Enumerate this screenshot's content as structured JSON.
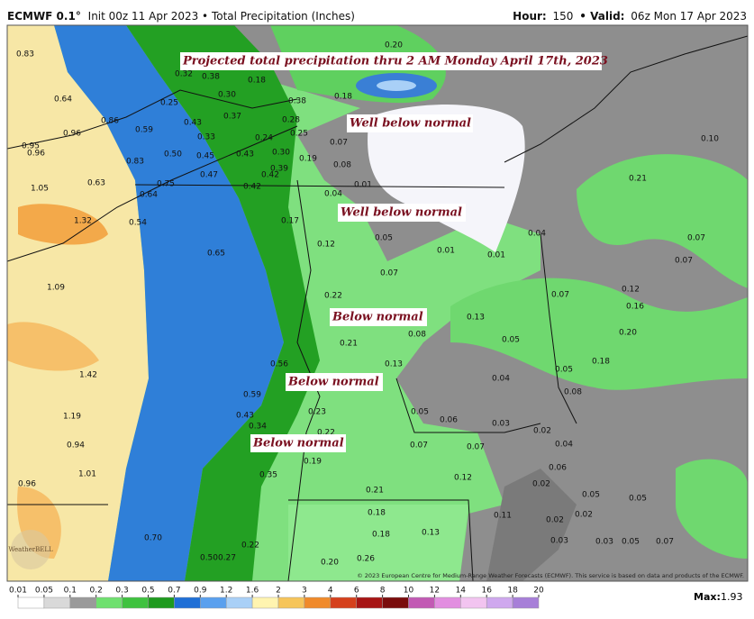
{
  "header": {
    "model": "ECMWF 0.1°",
    "init": "Init 00z 11 Apr 2023 • Total Precipitation (Inches)",
    "hour_label": "Hour:",
    "hour": "150",
    "valid_label": "• Valid:",
    "valid": "06z Mon 17 Apr 2023"
  },
  "annotations": [
    "Projected total precipitation thru 2 AM Monday April 17th, 2023",
    "Well below normal",
    "Well below normal",
    "Below normal",
    "Below normal",
    "Below normal"
  ],
  "map_labels": [
    "0.83",
    "0.64",
    "0.86",
    "0.96",
    "0.95",
    "0.96",
    "0.59",
    "0.83",
    "0.50",
    "0.63",
    "1.05",
    "0.64",
    "0.75",
    "0.54",
    "1.32",
    "1.09",
    "0.65",
    "1.42",
    "1.19",
    "0.94",
    "1.01",
    "0.96",
    "0.70",
    "0.50",
    "0.27",
    "0.22",
    "0.32",
    "0.38",
    "0.18",
    "0.30",
    "0.25",
    "0.37",
    "0.43",
    "0.33",
    "0.45",
    "0.43",
    "0.47",
    "0.42",
    "0.42",
    "0.30",
    "0.39",
    "0.24",
    "0.28",
    "0.38",
    "0.25",
    "0.19",
    "0.18",
    "0.20",
    "0.07",
    "0.08",
    "0.01",
    "0.04",
    "0.17",
    "0.12",
    "0.05",
    "0.01",
    "0.01",
    "0.04",
    "0.07",
    "0.22",
    "0.21",
    "0.08",
    "0.13",
    "0.56",
    "0.59",
    "0.43",
    "0.34",
    "0.23",
    "0.22",
    "0.19",
    "0.05",
    "0.06",
    "0.07",
    "0.07",
    "0.12",
    "0.04",
    "0.03",
    "0.02",
    "0.04",
    "0.06",
    "0.02",
    "0.35",
    "0.21",
    "0.18",
    "0.18",
    "0.13",
    "0.26",
    "0.20",
    "0.11",
    "0.02",
    "0.02",
    "0.05",
    "0.05",
    "0.03",
    "0.03",
    "0.05",
    "0.07",
    "0.13",
    "0.05",
    "0.07",
    "0.05",
    "0.08",
    "0.18",
    "0.20",
    "0.16",
    "0.12",
    "0.21",
    "0.07",
    "0.07",
    "0.10"
  ],
  "credit": "© 2023 European Centre for Medium-Range Weather Forecasts (ECMWF). This service is based on data and products of the ECMWF.",
  "logo": "WeatherBELL",
  "colorbar": {
    "ticks": [
      0.01,
      0.05,
      0.1,
      0.2,
      0.3,
      0.5,
      0.7,
      0.9,
      1.2,
      1.6,
      2,
      3,
      4,
      6,
      8,
      10,
      12,
      14,
      16,
      18,
      20
    ],
    "colors": [
      "#ffffff",
      "#d9d9d9",
      "#9a9a9a",
      "#6fe06f",
      "#3fc23f",
      "#1e9a1e",
      "#1f6fd6",
      "#5aa0ee",
      "#a9d0f7",
      "#fff4b0",
      "#f6c55a",
      "#f08a2a",
      "#d5401c",
      "#a71414",
      "#7a0c0c",
      "#c25ab4",
      "#e28ee0",
      "#f2c4f0",
      "#cfa8ee",
      "#a77fd8"
    ],
    "max_label": "Max:",
    "max": 1.93
  }
}
